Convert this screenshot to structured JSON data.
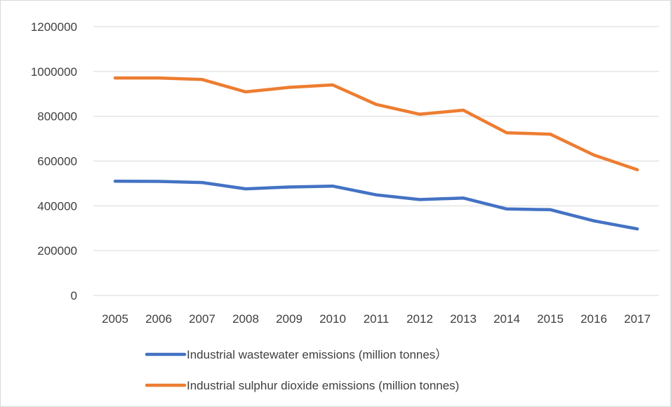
{
  "chart_data": {
    "type": "line",
    "title": "",
    "xlabel": "",
    "ylabel": "",
    "categories": [
      "2005",
      "2006",
      "2007",
      "2008",
      "2009",
      "2010",
      "2011",
      "2012",
      "2013",
      "2014",
      "2015",
      "2016",
      "2017"
    ],
    "ylim": [
      0,
      1200000
    ],
    "yticks": [
      0,
      200000,
      400000,
      600000,
      800000,
      1000000,
      1200000
    ],
    "ytick_labels": [
      "0",
      "200000",
      "400000",
      "600000",
      "800000",
      "1000000",
      "1200000"
    ],
    "grid": true,
    "legend_position": "bottom",
    "series": [
      {
        "name": "Industrial wastewater emissions (million tonnes）",
        "color": "#4472c4",
        "values": [
          510000,
          509000,
          504000,
          476000,
          484000,
          488000,
          449000,
          428000,
          435000,
          386000,
          383000,
          333000,
          297000
        ]
      },
      {
        "name": "Industrial sulphur dioxide emissions (million tonnes)",
        "color": "#ed7d31",
        "values": [
          971000,
          971000,
          964000,
          909000,
          929000,
          940000,
          853000,
          809000,
          827000,
          726000,
          720000,
          627000,
          561000
        ]
      }
    ]
  }
}
